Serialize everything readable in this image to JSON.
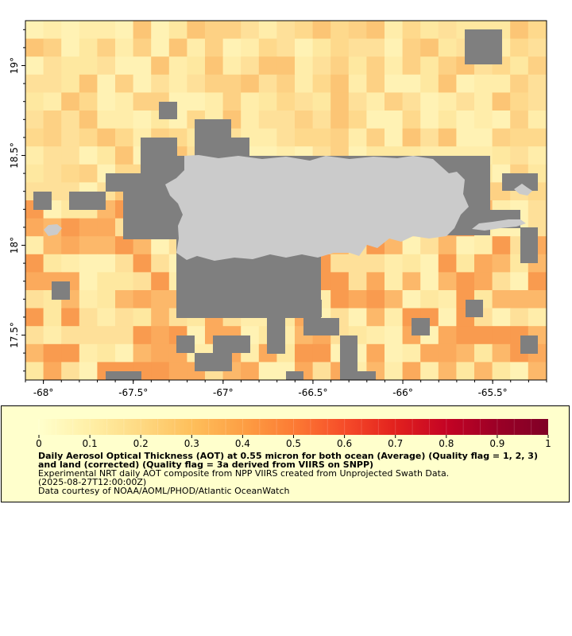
{
  "map": {
    "lon_min": -68.1,
    "lon_max": -65.2,
    "lat_min": 17.25,
    "lat_max": 19.25,
    "x_ticks": [
      {
        "value": -68,
        "label": "-68°"
      },
      {
        "value": -67.5,
        "label": "-67.5°"
      },
      {
        "value": -67,
        "label": "-67°"
      },
      {
        "value": -66.5,
        "label": "-66.5°"
      },
      {
        "value": -66,
        "label": "-66°"
      },
      {
        "value": -65.5,
        "label": "-65.5°"
      }
    ],
    "y_ticks": [
      {
        "value": 19,
        "label": "19°"
      },
      {
        "value": 18.5,
        "label": "18.5°"
      },
      {
        "value": 18,
        "label": "18°"
      },
      {
        "value": 17.5,
        "label": "17.5°"
      }
    ],
    "colors": {
      "no_data": "#7f7f7f",
      "land": "#cbcbcb",
      "frame": "#000000"
    }
  },
  "legend": {
    "range": [
      0,
      1
    ],
    "ticks": [
      "0",
      "0.1",
      "0.2",
      "0.3",
      "0.4",
      "0.5",
      "0.6",
      "0.7",
      "0.8",
      "0.9",
      "1"
    ],
    "colors": [
      "#ffffcc",
      "#ffefa6",
      "#fed982",
      "#febf5b",
      "#fd9f44",
      "#fc7b34",
      "#f64c29",
      "#e2211e",
      "#c40324",
      "#9b0026",
      "#800026"
    ],
    "title": "Daily Aerosol Optical Thickness (AOT) at 0.55 micron for both ocean (Average) (Quality flag = 1, 2, 3) and land (corrected) (Quality flag = 3a derived from VIIRS on SNPP)",
    "line1": "Experimental NRT daily AOT composite from NPP VIIRS created from Unprojected Swath Data.",
    "line2": "(2025-08-27T12:00:00Z)",
    "line3": "Data courtesy of NOAA/AOML/PHOD/Atlantic OceanWatch"
  }
}
